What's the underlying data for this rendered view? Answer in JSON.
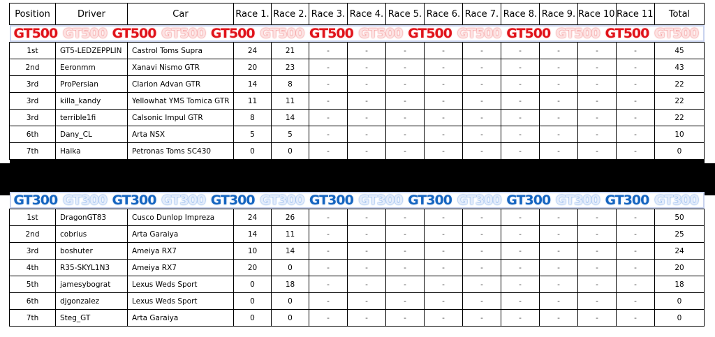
{
  "headers": [
    "Position",
    "Driver",
    "Car",
    "Race 1.",
    "Race 2.",
    "Race 3.",
    "Race 4.",
    "Race 5.",
    "Race 6.",
    "Race 7.",
    "Race 8.",
    "Race 9.",
    "Race 10.",
    "Race 11.",
    "Total"
  ],
  "gt500": {
    "banner": [
      "GT500",
      "GT500",
      "GT500",
      "GT500",
      "GT500",
      "GT500",
      "GT500",
      "GT500",
      "GT500",
      "GT500",
      "GT500",
      "GT500",
      "GT500",
      "GT500"
    ],
    "rows": [
      {
        "pos": "1st",
        "driver": "GT5-LEDZEPPLIN",
        "car": "Castrol Toms Supra",
        "r1": "24",
        "r2": "21",
        "rest": [
          "-",
          "-",
          "-",
          "-",
          "-",
          "-",
          "-",
          "-",
          "-"
        ],
        "total": "45"
      },
      {
        "pos": "2nd",
        "driver": "Eeronmm",
        "car": "Xanavi Nismo GTR",
        "r1": "20",
        "r2": "23",
        "rest": [
          "-",
          "-",
          "-",
          "-",
          "-",
          "-",
          "-",
          "-",
          "-"
        ],
        "total": "43"
      },
      {
        "pos": "3rd",
        "driver": "ProPersian",
        "car": "Clarion Advan GTR",
        "r1": "14",
        "r2": "8",
        "rest": [
          "-",
          "-",
          "-",
          "-",
          "-",
          "-",
          "-",
          "-",
          "-"
        ],
        "total": "22"
      },
      {
        "pos": "3rd",
        "driver": "killa_kandy",
        "car": "Yellowhat YMS Tomica GTR",
        "r1": "11",
        "r2": "11",
        "rest": [
          "-",
          "-",
          "-",
          "-",
          "-",
          "-",
          "-",
          "-",
          "-"
        ],
        "total": "22"
      },
      {
        "pos": "3rd",
        "driver": "terrible1fi",
        "car": "Calsonic Impul GTR",
        "r1": "8",
        "r2": "14",
        "rest": [
          "-",
          "-",
          "-",
          "-",
          "-",
          "-",
          "-",
          "-",
          "-"
        ],
        "total": "22"
      },
      {
        "pos": "6th",
        "driver": "Dany_CL",
        "car": "Arta NSX",
        "r1": "5",
        "r2": "5",
        "rest": [
          "-",
          "-",
          "-",
          "-",
          "-",
          "-",
          "-",
          "-",
          "-"
        ],
        "total": "10"
      },
      {
        "pos": "7th",
        "driver": "Haika",
        "car": "Petronas Toms SC430",
        "r1": "0",
        "r2": "0",
        "rest": [
          "-",
          "-",
          "-",
          "-",
          "-",
          "-",
          "-",
          "-",
          "-"
        ],
        "total": "0"
      }
    ]
  },
  "gt300": {
    "banner": [
      "GT300",
      "GT300",
      "GT300",
      "GT300",
      "GT300",
      "GT300",
      "GT300",
      "GT300",
      "GT300",
      "GT300",
      "GT300",
      "GT300",
      "GT300",
      "GT300"
    ],
    "rows": [
      {
        "pos": "1st",
        "driver": "DragonGT83",
        "car": "Cusco Dunlop Impreza",
        "r1": "24",
        "r2": "26",
        "rest": [
          "-",
          "-",
          "-",
          "-",
          "-",
          "-",
          "-",
          "-",
          "-"
        ],
        "total": "50"
      },
      {
        "pos": "2nd",
        "driver": "cobrius",
        "car": "Arta Garaiya",
        "r1": "14",
        "r2": "11",
        "rest": [
          "-",
          "-",
          "-",
          "-",
          "-",
          "-",
          "-",
          "-",
          "-"
        ],
        "total": "25"
      },
      {
        "pos": "3rd",
        "driver": "boshuter",
        "car": "Ameiya RX7",
        "r1": "10",
        "r2": "14",
        "rest": [
          "-",
          "-",
          "-",
          "-",
          "-",
          "-",
          "-",
          "-",
          "-"
        ],
        "total": "24"
      },
      {
        "pos": "4th",
        "driver": "R35-SKYL1N3",
        "car": "Ameiya RX7",
        "r1": "20",
        "r2": "0",
        "rest": [
          "-",
          "-",
          "-",
          "-",
          "-",
          "-",
          "-",
          "-",
          "-"
        ],
        "total": "20"
      },
      {
        "pos": "5th",
        "driver": "jamesybograt",
        "car": "Lexus Weds Sport",
        "r1": "0",
        "r2": "18",
        "rest": [
          "-",
          "-",
          "-",
          "-",
          "-",
          "-",
          "-",
          "-",
          "-"
        ],
        "total": "18"
      },
      {
        "pos": "6th",
        "driver": "djgonzalez",
        "car": "Lexus Weds Sport",
        "r1": "0",
        "r2": "0",
        "rest": [
          "-",
          "-",
          "-",
          "-",
          "-",
          "-",
          "-",
          "-",
          "-"
        ],
        "total": "0"
      },
      {
        "pos": "7th",
        "driver": "Steg_GT",
        "car": "Arta Garaiya",
        "r1": "0",
        "r2": "0",
        "rest": [
          "-",
          "-",
          "-",
          "-",
          "-",
          "-",
          "-",
          "-",
          "-"
        ],
        "total": "0"
      }
    ]
  }
}
